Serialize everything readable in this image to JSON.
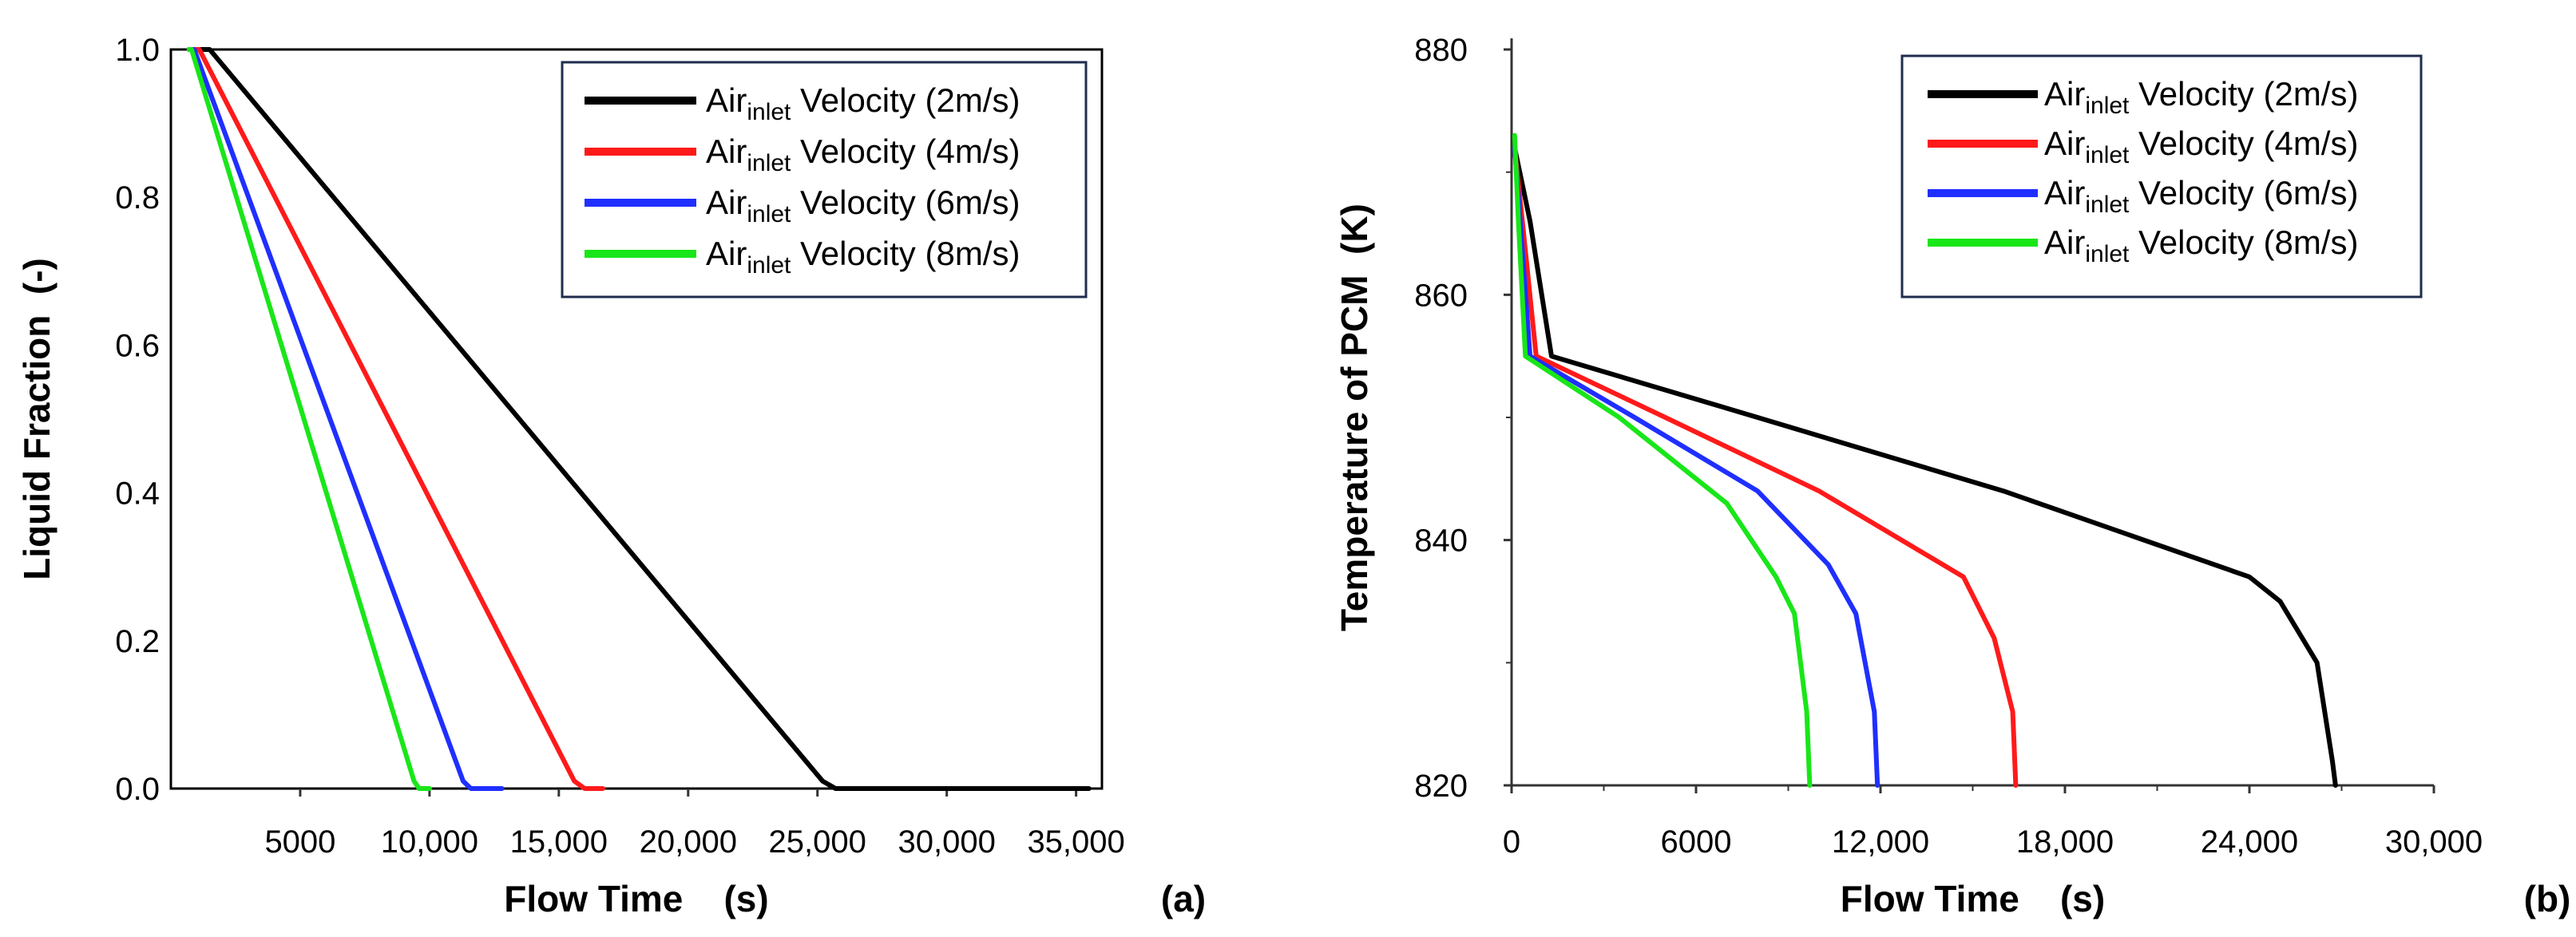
{
  "chart_data": [
    {
      "type": "line",
      "panel_label": "(a)",
      "xlabel": "Flow Time    (s)",
      "ylabel": "Liquid Fraction  (-)",
      "xlim": [
        0,
        36000
      ],
      "ylim": [
        0,
        1.0
      ],
      "xticks": [
        5000,
        10000,
        15000,
        20000,
        25000,
        30000,
        35000
      ],
      "xtick_labels": [
        "5000",
        "10,000",
        "15,000",
        "20,000",
        "25,000",
        "30,000",
        "35,000"
      ],
      "yticks": [
        0,
        0.2,
        0.4,
        0.6,
        0.8,
        1.0
      ],
      "ytick_labels": [
        "0.0",
        "0.2",
        "0.4",
        "0.6",
        "0.8",
        "1.0"
      ],
      "legend_position": "top-right",
      "series": [
        {
          "name": "Air",
          "name_sub": "inlet",
          "name_suffix": " Velocity (2m/s)",
          "color": "#000000",
          "points": [
            [
              700,
              1.0
            ],
            [
              1500,
              1.0
            ],
            [
              25200,
              0.01
            ],
            [
              25700,
              0.0
            ],
            [
              35500,
              0.0
            ]
          ]
        },
        {
          "name": "Air",
          "name_sub": "inlet",
          "name_suffix": " Velocity (4m/s)",
          "color": "#ff1a1a",
          "points": [
            [
              700,
              1.0
            ],
            [
              1100,
              1.0
            ],
            [
              15600,
              0.01
            ],
            [
              16000,
              0.0
            ],
            [
              16700,
              0.0
            ]
          ]
        },
        {
          "name": "Air",
          "name_sub": "inlet",
          "name_suffix": " Velocity (6m/s)",
          "color": "#1f2fff",
          "points": [
            [
              700,
              1.0
            ],
            [
              900,
              1.0
            ],
            [
              11300,
              0.01
            ],
            [
              11600,
              0.0
            ],
            [
              12800,
              0.0
            ]
          ]
        },
        {
          "name": "Air",
          "name_sub": "inlet",
          "name_suffix": " Velocity (8m/s)",
          "color": "#19e619",
          "points": [
            [
              700,
              1.0
            ],
            [
              800,
              1.0
            ],
            [
              9400,
              0.01
            ],
            [
              9600,
              0.0
            ],
            [
              10000,
              0.0
            ]
          ]
        }
      ]
    },
    {
      "type": "line",
      "panel_label": "(b)",
      "xlabel": "Flow Time    (s)",
      "ylabel": "Temperature of PCM  (K)",
      "xlim": [
        0,
        30000
      ],
      "ylim": [
        820,
        880
      ],
      "xticks": [
        0,
        6000,
        12000,
        18000,
        24000,
        30000
      ],
      "xtick_labels": [
        "0",
        "6000",
        "12,000",
        "18,000",
        "24,000",
        "30,000"
      ],
      "yticks": [
        820,
        840,
        860,
        880
      ],
      "ytick_labels": [
        "820",
        "840",
        "860",
        "880"
      ],
      "legend_position": "top-right",
      "series": [
        {
          "name": "Air",
          "name_sub": "inlet",
          "name_suffix": " Velocity (2m/s)",
          "color": "#000000",
          "points": [
            [
              100,
              872
            ],
            [
              600,
              866
            ],
            [
              1300,
              855
            ],
            [
              8000,
              850
            ],
            [
              16000,
              844
            ],
            [
              24000,
              837
            ],
            [
              25000,
              835
            ],
            [
              26200,
              830
            ],
            [
              26700,
              822
            ],
            [
              26800,
              820
            ]
          ]
        },
        {
          "name": "Air",
          "name_sub": "inlet",
          "name_suffix": " Velocity (4m/s)",
          "color": "#ff1a1a",
          "points": [
            [
              100,
              872
            ],
            [
              350,
              866
            ],
            [
              800,
              855
            ],
            [
              5000,
              850
            ],
            [
              10000,
              844
            ],
            [
              14700,
              837
            ],
            [
              15700,
              832
            ],
            [
              16300,
              826
            ],
            [
              16400,
              820
            ]
          ]
        },
        {
          "name": "Air",
          "name_sub": "inlet",
          "name_suffix": " Velocity (6m/s)",
          "color": "#1f2fff",
          "points": [
            [
              100,
              872
            ],
            [
              280,
              866
            ],
            [
              600,
              855
            ],
            [
              4000,
              850
            ],
            [
              8000,
              844
            ],
            [
              10300,
              838
            ],
            [
              11200,
              834
            ],
            [
              11800,
              826
            ],
            [
              11900,
              820
            ]
          ]
        },
        {
          "name": "Air",
          "name_sub": "inlet",
          "name_suffix": " Velocity (8m/s)",
          "color": "#19e619",
          "points": [
            [
              100,
              873
            ],
            [
              220,
              866
            ],
            [
              450,
              855
            ],
            [
              3500,
              850
            ],
            [
              7000,
              843
            ],
            [
              8600,
              837
            ],
            [
              9200,
              834
            ],
            [
              9600,
              826
            ],
            [
              9700,
              820
            ]
          ]
        }
      ]
    }
  ]
}
